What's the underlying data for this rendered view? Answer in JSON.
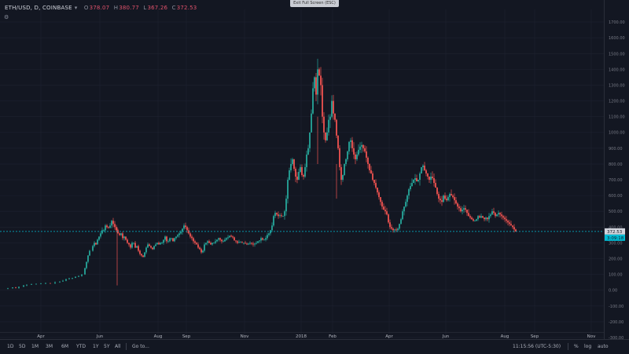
{
  "exit_fullscreen_label": "Exit Full Screen (ESC)",
  "header": {
    "symbol": "ETH/USD, D, COINBASE",
    "open_label": "O",
    "open": "378.07",
    "high_label": "H",
    "high": "380.77",
    "low_label": "L",
    "low": "367.26",
    "close_label": "C",
    "close": "372.53"
  },
  "colors": {
    "background": "#131722",
    "up": "#26a69a",
    "down": "#ef5350",
    "grid": "#1e2230",
    "last_line": "#00bcd4",
    "axis_text": "#787b86"
  },
  "chart_data": {
    "type": "candlestick",
    "x_labels": [
      "Apr",
      "Jun",
      "Aug",
      "Sep",
      "Nov",
      "2018",
      "Feb",
      "Apr",
      "Jun",
      "Aug",
      "Sep",
      "Nov"
    ],
    "y_ticks": [
      "1700.00",
      "1600.00",
      "1500.00",
      "1400.00",
      "1300.00",
      "1200.00",
      "1100.00",
      "1000.00",
      "900.00",
      "800.00",
      "700.00",
      "600.00",
      "500.00",
      "400.00",
      "300.00",
      "200.00",
      "100.00",
      "0.00",
      "-100.00",
      "-200.00",
      "-300.00"
    ],
    "y_tick_values": [
      1700,
      1600,
      1500,
      1400,
      1300,
      1200,
      1100,
      1000,
      900,
      800,
      700,
      600,
      500,
      400,
      300,
      200,
      100,
      0,
      -100,
      -200,
      -300
    ],
    "last_price": "372.53",
    "last_price_value": 372.53,
    "second_badge": "3:09:18",
    "ylim": [
      -310,
      1780
    ],
    "trend": [
      [
        0,
        10
      ],
      [
        6,
        12
      ],
      [
        12,
        18
      ],
      [
        16,
        14
      ],
      [
        20,
        22
      ],
      [
        26,
        30
      ],
      [
        30,
        35
      ],
      [
        36,
        38
      ],
      [
        42,
        40
      ],
      [
        48,
        42
      ],
      [
        54,
        45
      ],
      [
        60,
        44
      ],
      [
        66,
        50
      ],
      [
        72,
        55
      ],
      [
        76,
        60
      ],
      [
        80,
        70
      ],
      [
        84,
        75
      ],
      [
        88,
        78
      ],
      [
        92,
        85
      ],
      [
        96,
        90
      ],
      [
        100,
        100
      ],
      [
        104,
        140
      ],
      [
        106,
        180
      ],
      [
        108,
        220
      ],
      [
        110,
        250
      ],
      [
        114,
        280
      ],
      [
        116,
        300
      ],
      [
        118,
        290
      ],
      [
        120,
        320
      ],
      [
        122,
        340
      ],
      [
        124,
        360
      ],
      [
        126,
        380
      ],
      [
        128,
        380
      ],
      [
        130,
        410
      ],
      [
        132,
        400
      ],
      [
        134,
        395
      ],
      [
        136,
        410
      ],
      [
        138,
        440
      ],
      [
        140,
        420
      ],
      [
        142,
        400
      ],
      [
        144,
        380
      ],
      [
        146,
        360
      ],
      [
        148,
        350
      ],
      [
        150,
        360
      ],
      [
        152,
        330
      ],
      [
        154,
        340
      ],
      [
        156,
        320
      ],
      [
        158,
        300
      ],
      [
        160,
        290
      ],
      [
        162,
        270
      ],
      [
        164,
        300
      ],
      [
        166,
        300
      ],
      [
        168,
        270
      ],
      [
        170,
        280
      ],
      [
        172,
        250
      ],
      [
        174,
        230
      ],
      [
        176,
        220
      ],
      [
        178,
        210
      ],
      [
        180,
        240
      ],
      [
        182,
        270
      ],
      [
        184,
        290
      ],
      [
        186,
        280
      ],
      [
        188,
        270
      ],
      [
        190,
        260
      ],
      [
        192,
        280
      ],
      [
        194,
        290
      ],
      [
        196,
        300
      ],
      [
        198,
        290
      ],
      [
        200,
        300
      ],
      [
        202,
        300
      ],
      [
        204,
        320
      ],
      [
        206,
        340
      ],
      [
        208,
        310
      ],
      [
        210,
        310
      ],
      [
        212,
        330
      ],
      [
        214,
        330
      ],
      [
        216,
        310
      ],
      [
        218,
        330
      ],
      [
        220,
        340
      ],
      [
        222,
        350
      ],
      [
        224,
        360
      ],
      [
        226,
        370
      ],
      [
        228,
        390
      ],
      [
        230,
        410
      ],
      [
        232,
        400
      ],
      [
        234,
        380
      ],
      [
        236,
        360
      ],
      [
        238,
        340
      ],
      [
        240,
        330
      ],
      [
        242,
        310
      ],
      [
        244,
        300
      ],
      [
        246,
        290
      ],
      [
        248,
        270
      ],
      [
        250,
        260
      ],
      [
        252,
        240
      ],
      [
        254,
        250
      ],
      [
        256,
        290
      ],
      [
        258,
        300
      ],
      [
        260,
        310
      ],
      [
        262,
        300
      ],
      [
        264,
        290
      ],
      [
        266,
        300
      ],
      [
        268,
        300
      ],
      [
        270,
        310
      ],
      [
        272,
        320
      ],
      [
        274,
        330
      ],
      [
        276,
        320
      ],
      [
        278,
        310
      ],
      [
        280,
        310
      ],
      [
        282,
        320
      ],
      [
        284,
        330
      ],
      [
        286,
        335
      ],
      [
        288,
        345
      ],
      [
        290,
        340
      ],
      [
        292,
        335
      ],
      [
        294,
        315
      ],
      [
        296,
        310
      ],
      [
        298,
        300
      ],
      [
        300,
        305
      ],
      [
        302,
        305
      ],
      [
        304,
        300
      ],
      [
        306,
        300
      ],
      [
        308,
        295
      ],
      [
        310,
        290
      ],
      [
        312,
        295
      ],
      [
        314,
        300
      ],
      [
        316,
        295
      ],
      [
        318,
        290
      ],
      [
        320,
        295
      ],
      [
        322,
        300
      ],
      [
        324,
        310
      ],
      [
        326,
        315
      ],
      [
        328,
        330
      ],
      [
        330,
        320
      ],
      [
        332,
        320
      ],
      [
        334,
        330
      ],
      [
        336,
        350
      ],
      [
        338,
        360
      ],
      [
        340,
        380
      ],
      [
        342,
        410
      ],
      [
        344,
        470
      ],
      [
        346,
        490
      ],
      [
        348,
        480
      ],
      [
        350,
        470
      ],
      [
        352,
        475
      ],
      [
        354,
        470
      ],
      [
        356,
        470
      ],
      [
        358,
        500
      ],
      [
        360,
        580
      ],
      [
        362,
        700
      ],
      [
        364,
        760
      ],
      [
        366,
        800
      ],
      [
        368,
        830
      ],
      [
        370,
        770
      ],
      [
        372,
        720
      ],
      [
        374,
        700
      ],
      [
        376,
        750
      ],
      [
        378,
        780
      ],
      [
        380,
        730
      ],
      [
        382,
        720
      ],
      [
        384,
        780
      ],
      [
        386,
        860
      ],
      [
        388,
        900
      ],
      [
        390,
        1000
      ],
      [
        392,
        1120
      ],
      [
        394,
        1280
      ],
      [
        396,
        1350
      ],
      [
        398,
        1240
      ],
      [
        400,
        1400
      ],
      [
        402,
        1360
      ],
      [
        404,
        1300
      ],
      [
        406,
        1100
      ],
      [
        408,
        1000
      ],
      [
        410,
        950
      ],
      [
        412,
        1000
      ],
      [
        414,
        1080
      ],
      [
        416,
        1100
      ],
      [
        418,
        1200
      ],
      [
        420,
        1120
      ],
      [
        422,
        1080
      ],
      [
        424,
        980
      ],
      [
        426,
        900
      ],
      [
        428,
        780
      ],
      [
        430,
        700
      ],
      [
        432,
        730
      ],
      [
        434,
        800
      ],
      [
        436,
        830
      ],
      [
        438,
        880
      ],
      [
        440,
        940
      ],
      [
        442,
        950
      ],
      [
        444,
        900
      ],
      [
        446,
        860
      ],
      [
        448,
        830
      ],
      [
        450,
        860
      ],
      [
        452,
        890
      ],
      [
        454,
        910
      ],
      [
        456,
        920
      ],
      [
        458,
        900
      ],
      [
        460,
        880
      ],
      [
        462,
        840
      ],
      [
        464,
        800
      ],
      [
        466,
        760
      ],
      [
        468,
        740
      ],
      [
        470,
        700
      ],
      [
        472,
        680
      ],
      [
        474,
        650
      ],
      [
        476,
        620
      ],
      [
        478,
        590
      ],
      [
        480,
        560
      ],
      [
        482,
        530
      ],
      [
        484,
        510
      ],
      [
        486,
        500
      ],
      [
        488,
        480
      ],
      [
        490,
        430
      ],
      [
        492,
        400
      ],
      [
        494,
        390
      ],
      [
        496,
        380
      ],
      [
        498,
        385
      ],
      [
        500,
        380
      ],
      [
        502,
        390
      ],
      [
        504,
        420
      ],
      [
        506,
        450
      ],
      [
        508,
        500
      ],
      [
        510,
        530
      ],
      [
        512,
        560
      ],
      [
        514,
        600
      ],
      [
        516,
        640
      ],
      [
        518,
        660
      ],
      [
        520,
        680
      ],
      [
        522,
        700
      ],
      [
        524,
        710
      ],
      [
        526,
        690
      ],
      [
        528,
        700
      ],
      [
        530,
        740
      ],
      [
        532,
        780
      ],
      [
        534,
        790
      ],
      [
        536,
        760
      ],
      [
        538,
        740
      ],
      [
        540,
        720
      ],
      [
        542,
        700
      ],
      [
        544,
        720
      ],
      [
        546,
        710
      ],
      [
        548,
        680
      ],
      [
        550,
        650
      ],
      [
        552,
        610
      ],
      [
        554,
        580
      ],
      [
        556,
        570
      ],
      [
        558,
        560
      ],
      [
        560,
        600
      ],
      [
        562,
        580
      ],
      [
        564,
        570
      ],
      [
        566,
        590
      ],
      [
        568,
        610
      ],
      [
        570,
        600
      ],
      [
        572,
        590
      ],
      [
        574,
        570
      ],
      [
        576,
        550
      ],
      [
        578,
        530
      ],
      [
        580,
        520
      ],
      [
        582,
        500
      ],
      [
        584,
        510
      ],
      [
        586,
        520
      ],
      [
        588,
        510
      ],
      [
        590,
        490
      ],
      [
        592,
        470
      ],
      [
        594,
        460
      ],
      [
        596,
        450
      ],
      [
        598,
        440
      ],
      [
        600,
        440
      ],
      [
        602,
        450
      ],
      [
        604,
        470
      ],
      [
        606,
        460
      ],
      [
        608,
        470
      ],
      [
        610,
        460
      ],
      [
        612,
        450
      ],
      [
        614,
        460
      ],
      [
        616,
        450
      ],
      [
        618,
        470
      ],
      [
        620,
        480
      ],
      [
        622,
        500
      ],
      [
        624,
        490
      ],
      [
        626,
        470
      ],
      [
        628,
        480
      ],
      [
        630,
        490
      ],
      [
        632,
        480
      ],
      [
        634,
        470
      ],
      [
        636,
        460
      ],
      [
        638,
        450
      ],
      [
        640,
        440
      ],
      [
        642,
        430
      ],
      [
        644,
        420
      ],
      [
        646,
        410
      ],
      [
        648,
        400
      ],
      [
        650,
        385
      ],
      [
        652,
        372
      ]
    ]
  },
  "bottombar": {
    "ranges": [
      "1D",
      "5D",
      "1M",
      "3M",
      "6M",
      "YTD",
      "1Y",
      "5Y",
      "All"
    ],
    "goto": "Go to...",
    "clock": "11:15:56 (UTC-5:30)",
    "pct": "%",
    "log": "log",
    "auto": "auto"
  }
}
